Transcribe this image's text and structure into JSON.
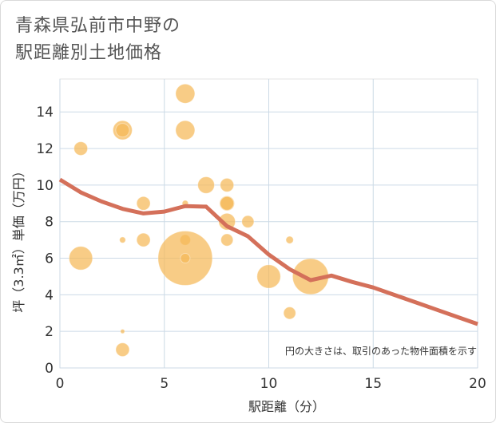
{
  "title_line1": "青森県弘前市中野の",
  "title_line2": "駅距離別土地価格",
  "chart_data": {
    "type": "scatter",
    "title": "青森県弘前市中野の駅距離別土地価格",
    "xlabel": "駅距離（分）",
    "ylabel": "坪（3.3㎡）単価（万円）",
    "xlim": [
      0,
      20
    ],
    "ylim": [
      0,
      15.8
    ],
    "x_ticks": [
      0,
      5,
      10,
      15,
      20
    ],
    "y_ticks": [
      0,
      2,
      4,
      6,
      8,
      10,
      12,
      14
    ],
    "grid": true,
    "note": "円の大きさは、取引のあった物件面積を示す",
    "bubble_color": "#f5b858",
    "line_color": "#d4705a",
    "points": [
      {
        "x": 1,
        "y": 12,
        "size": 1
      },
      {
        "x": 1,
        "y": 6,
        "size": 3
      },
      {
        "x": 3,
        "y": 13,
        "size": 2
      },
      {
        "x": 3,
        "y": 13,
        "size": 1
      },
      {
        "x": 3,
        "y": 7,
        "size": 0.2
      },
      {
        "x": 3,
        "y": 2,
        "size": 0.1
      },
      {
        "x": 3,
        "y": 1,
        "size": 1
      },
      {
        "x": 4,
        "y": 9,
        "size": 1
      },
      {
        "x": 4,
        "y": 7,
        "size": 1
      },
      {
        "x": 6,
        "y": 15,
        "size": 2
      },
      {
        "x": 6,
        "y": 13,
        "size": 2
      },
      {
        "x": 6,
        "y": 9,
        "size": 0.2
      },
      {
        "x": 6,
        "y": 7,
        "size": 0.6
      },
      {
        "x": 6,
        "y": 6,
        "size": 16
      },
      {
        "x": 6,
        "y": 6,
        "size": 0.5
      },
      {
        "x": 7,
        "y": 10,
        "size": 1.5
      },
      {
        "x": 8,
        "y": 10,
        "size": 1
      },
      {
        "x": 8,
        "y": 9,
        "size": 1.2
      },
      {
        "x": 8,
        "y": 9,
        "size": 1
      },
      {
        "x": 8,
        "y": 8,
        "size": 1.5
      },
      {
        "x": 8,
        "y": 7,
        "size": 0.8
      },
      {
        "x": 9,
        "y": 8,
        "size": 0.8
      },
      {
        "x": 10,
        "y": 5,
        "size": 3
      },
      {
        "x": 11,
        "y": 7,
        "size": 0.3
      },
      {
        "x": 11,
        "y": 3,
        "size": 0.8
      },
      {
        "x": 12,
        "y": 5,
        "size": 7
      }
    ],
    "trend": {
      "x": [
        0,
        1,
        2,
        3,
        4,
        5,
        6,
        7,
        8,
        9,
        10,
        11,
        12,
        13,
        14,
        15,
        16,
        17,
        18,
        19,
        20
      ],
      "y": [
        10.3,
        9.6,
        9.1,
        8.7,
        8.45,
        8.55,
        8.85,
        8.82,
        7.75,
        7.2,
        6.2,
        5.4,
        4.8,
        5.05,
        4.7,
        4.4,
        4.0,
        3.6,
        3.2,
        2.8,
        2.4
      ]
    }
  }
}
